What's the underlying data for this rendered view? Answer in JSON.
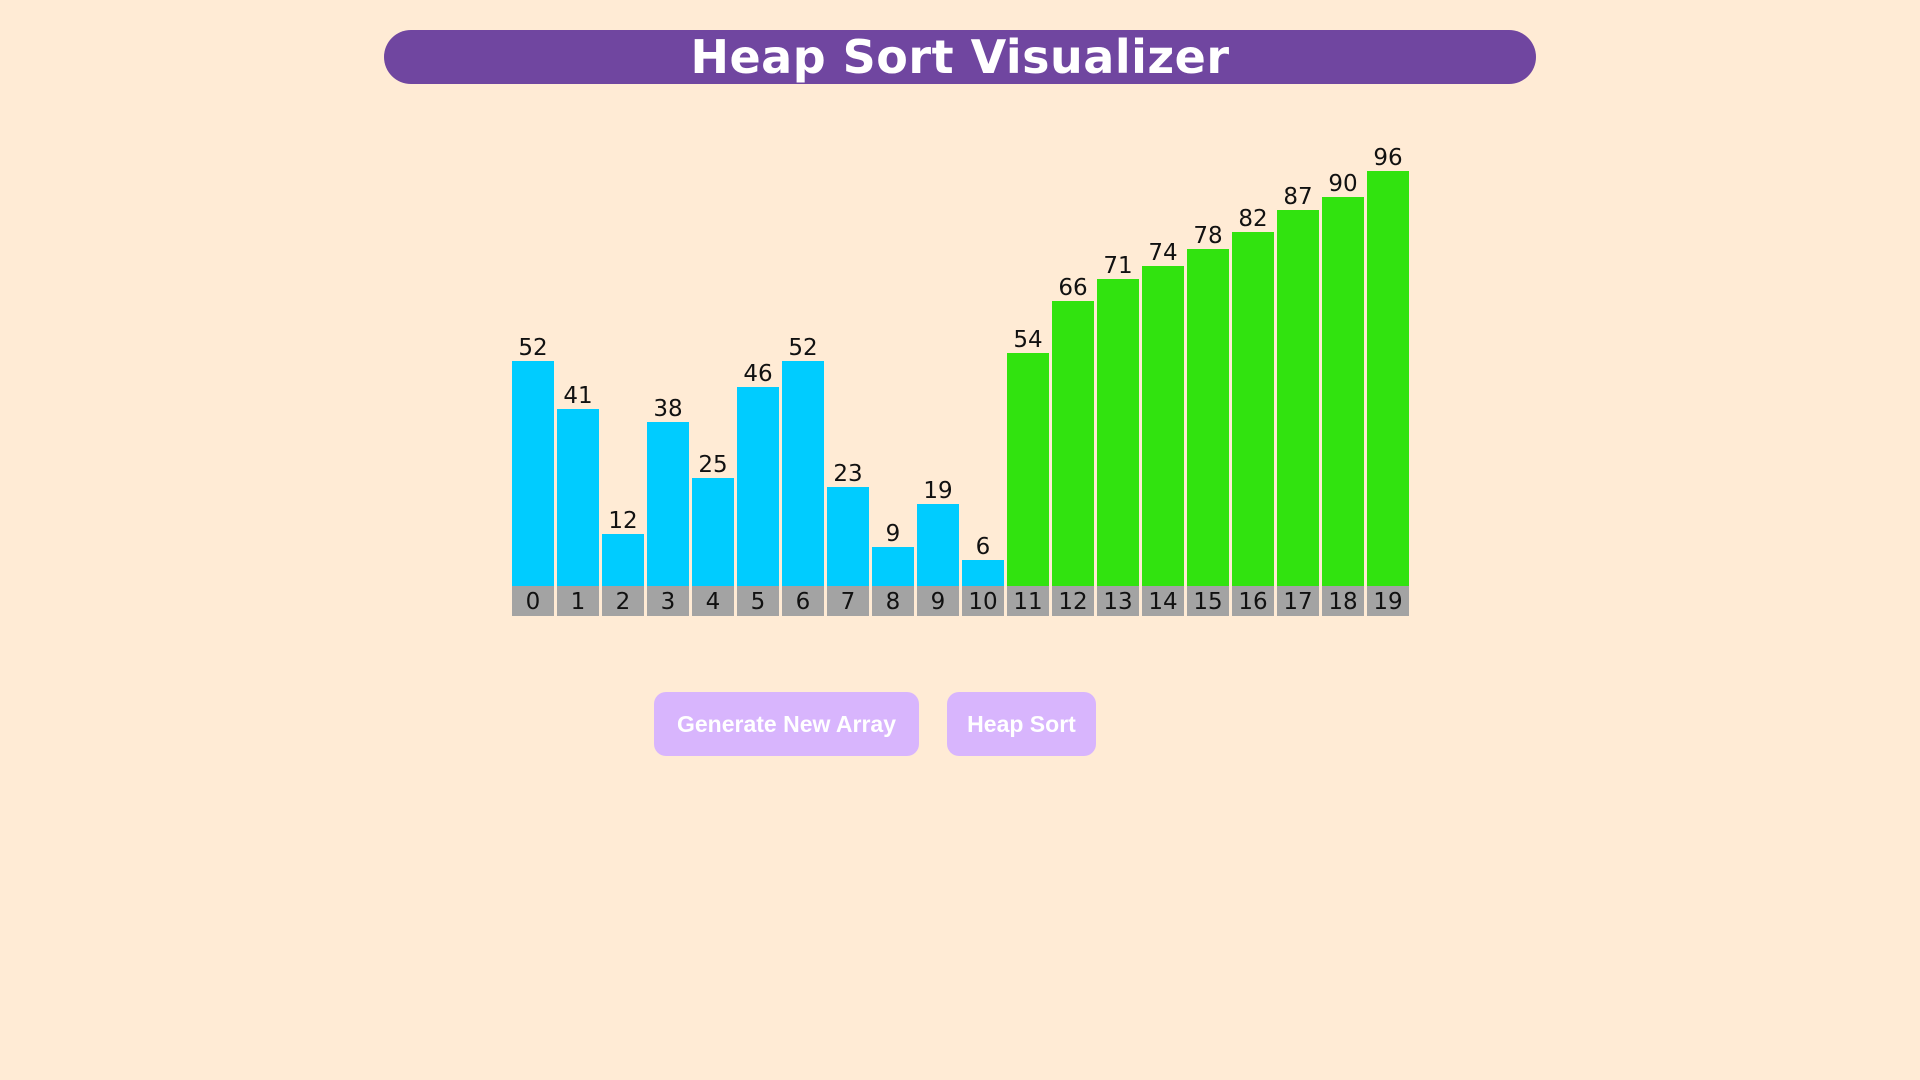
{
  "header": {
    "title": "Heap Sort Visualizer"
  },
  "controls": {
    "generate_label": "Generate New Array",
    "sort_label": "Heap Sort"
  },
  "colors": {
    "unsorted": "#00ccff",
    "sorted": "#31e30f",
    "index_bg": "#a3a3a3",
    "title_bg": "#7046a0",
    "button_bg": "#d8b5fd",
    "page_bg": "#ffebd5"
  },
  "chart_data": {
    "type": "bar",
    "categories": [
      "0",
      "1",
      "2",
      "3",
      "4",
      "5",
      "6",
      "7",
      "8",
      "9",
      "10",
      "11",
      "12",
      "13",
      "14",
      "15",
      "16",
      "17",
      "18",
      "19"
    ],
    "values": [
      52,
      41,
      12,
      38,
      25,
      46,
      52,
      23,
      9,
      19,
      6,
      54,
      66,
      71,
      74,
      78,
      82,
      87,
      90,
      96
    ],
    "sorted_from_index": 11,
    "ylim": [
      0,
      100
    ]
  }
}
